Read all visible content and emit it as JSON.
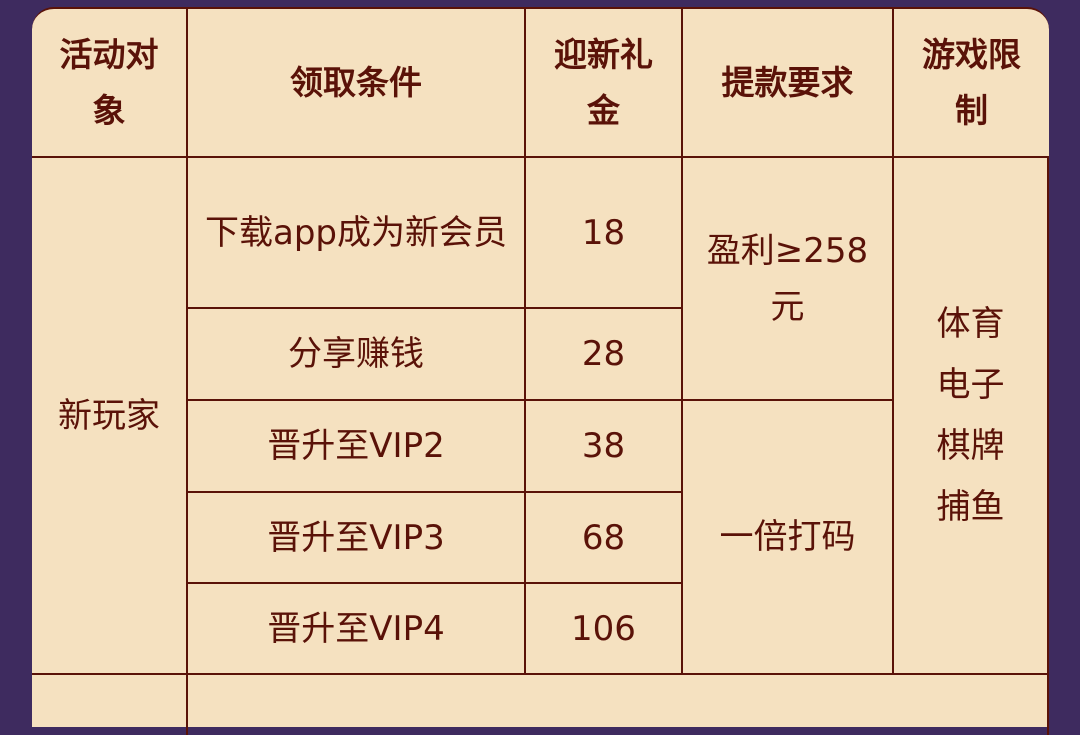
{
  "colors": {
    "background": "#3e2b5f",
    "cell": "#f5e1c0",
    "text": "#5a1208"
  },
  "table": {
    "headers": [
      "活动对象",
      "领取条件",
      "迎新礼金",
      "提款要求",
      "游戏限制"
    ],
    "target": "新玩家",
    "rows": [
      {
        "condition": "下载app成为新会员",
        "bonus": "18"
      },
      {
        "condition": "分享赚钱",
        "bonus": "28"
      },
      {
        "condition": "晋升至VIP2",
        "bonus": "38"
      },
      {
        "condition": "晋升至VIP3",
        "bonus": "68"
      },
      {
        "condition": "晋升至VIP4",
        "bonus": "106"
      }
    ],
    "withdraw": [
      "盈利≥258元",
      "一倍打码"
    ],
    "games": "体育电子棋牌捕鱼"
  }
}
